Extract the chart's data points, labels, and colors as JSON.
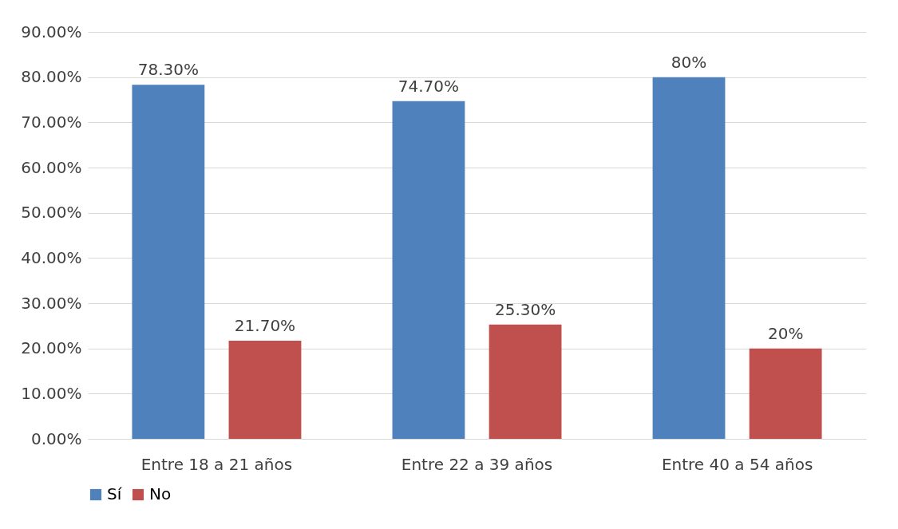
{
  "chart_data": {
    "type": "bar",
    "categories": [
      "Entre 18 a 21 años",
      "Entre 22 a 39 años",
      "Entre 40 a 54 años"
    ],
    "series": [
      {
        "name": "Sí",
        "color": "#4f81bd",
        "values": [
          78.3,
          74.7,
          80
        ],
        "value_labels": [
          "78.30%",
          "74.70%",
          "80%"
        ]
      },
      {
        "name": "No",
        "color": "#c0504d",
        "values": [
          21.7,
          25.3,
          20
        ],
        "value_labels": [
          "21.70%",
          "25.30%",
          "20%"
        ]
      }
    ],
    "ylim": [
      0,
      90
    ],
    "yticks": [
      {
        "value": 0,
        "label": "0.00%"
      },
      {
        "value": 10,
        "label": "10.00%"
      },
      {
        "value": 20,
        "label": "20.00%"
      },
      {
        "value": 30,
        "label": "30.00%"
      },
      {
        "value": 40,
        "label": "40.00%"
      },
      {
        "value": 50,
        "label": "50.00%"
      },
      {
        "value": 60,
        "label": "60.00%"
      },
      {
        "value": 70,
        "label": "70.00%"
      },
      {
        "value": 80,
        "label": "80.00%"
      },
      {
        "value": 90,
        "label": "90.00%"
      }
    ],
    "grid": "y",
    "legend": "bottom"
  }
}
